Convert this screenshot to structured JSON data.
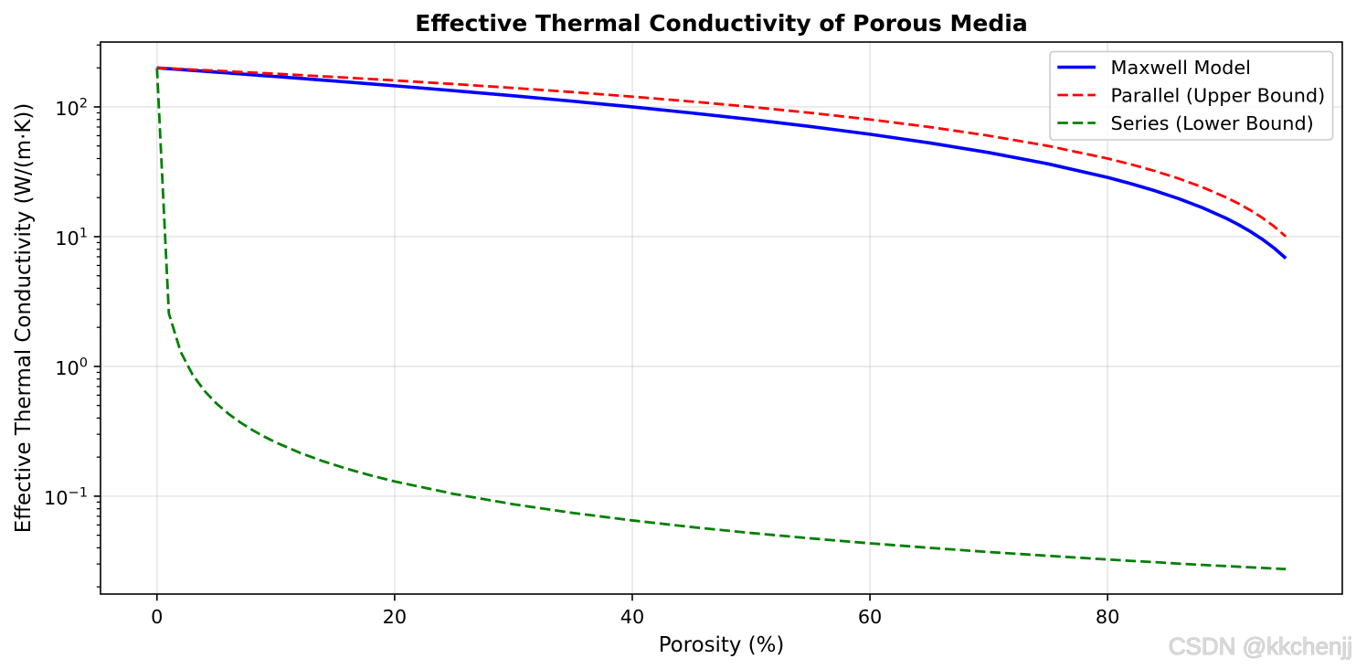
{
  "chart_data": {
    "type": "line",
    "title": "Effective Thermal Conductivity of Porous Media",
    "xlabel": "Porosity (%)",
    "ylabel": "Effective Thermal Conductivity (W/(m·K))",
    "xlim": [
      -4.75,
      99.75
    ],
    "ylim": [
      0.0176,
      316.2
    ],
    "y_log_scale": true,
    "grid": true,
    "legend_position": "top-right",
    "x_ticks": [
      {
        "value": 0,
        "label": "0"
      },
      {
        "value": 20,
        "label": "20"
      },
      {
        "value": 40,
        "label": "40"
      },
      {
        "value": 60,
        "label": "60"
      },
      {
        "value": 80,
        "label": "80"
      }
    ],
    "y_ticks": [
      {
        "value": 0.1,
        "base": "10",
        "exp": "−1"
      },
      {
        "value": 1,
        "base": "10",
        "exp": "0"
      },
      {
        "value": 10,
        "base": "10",
        "exp": "1"
      },
      {
        "value": 100,
        "base": "10",
        "exp": "2"
      }
    ],
    "x": [
      0,
      1,
      2,
      3,
      4,
      5,
      6,
      7,
      8,
      9,
      10,
      12,
      14,
      16,
      18,
      20,
      25,
      30,
      35,
      40,
      45,
      50,
      55,
      60,
      65,
      70,
      75,
      80,
      82,
      84,
      86,
      88,
      90,
      91,
      92,
      93,
      94,
      95
    ],
    "series": [
      {
        "name": "Maxwell Model",
        "color": "#0000ff",
        "dashed": false,
        "values": [
          200,
          197.02,
          194.06,
          191.13,
          188.24,
          185.37,
          182.53,
          179.71,
          176.93,
          174.17,
          171.43,
          166.04,
          160.75,
          155.56,
          150.47,
          145.46,
          133.34,
          121.75,
          110.65,
          100.02,
          89.81,
          80.02,
          70.61,
          61.56,
          52.85,
          44.47,
          36.39,
          28.6,
          25.56,
          22.56,
          19.6,
          16.69,
          13.82,
          12.4,
          10.98,
          9.58,
          8.19,
          6.81
        ]
      },
      {
        "name": "Parallel (Upper Bound)",
        "color": "#ff0000",
        "dashed": true,
        "values": [
          200,
          198.0,
          196.0,
          194.0,
          192.0,
          190.0,
          188.0,
          186.0,
          184.0,
          182.0,
          180.0,
          176.0,
          172.0,
          168.0,
          164.0,
          160.01,
          150.01,
          140.01,
          130.01,
          120.01,
          110.01,
          100.01,
          90.01,
          80.02,
          70.02,
          60.02,
          50.02,
          40.02,
          36.02,
          32.02,
          28.02,
          24.02,
          20.02,
          18.02,
          16.02,
          14.02,
          12.02,
          10.02
        ]
      },
      {
        "name": "Series (Lower Bound)",
        "color": "#008000",
        "dashed": true,
        "values": [
          200,
          2.567,
          1.292,
          0.863,
          0.648,
          0.5187,
          0.4325,
          0.3708,
          0.3245,
          0.2885,
          0.2597,
          0.2165,
          0.1856,
          0.1624,
          0.1444,
          0.1299,
          0.104,
          0.0866,
          0.0743,
          0.065,
          0.0578,
          0.052,
          0.0473,
          0.0433,
          0.04,
          0.0371,
          0.0347,
          0.0325,
          0.0317,
          0.031,
          0.0302,
          0.0295,
          0.0289,
          0.0286,
          0.0283,
          0.028,
          0.0277,
          0.0274
        ]
      }
    ]
  },
  "watermark": "CSDN @kkchenjj"
}
